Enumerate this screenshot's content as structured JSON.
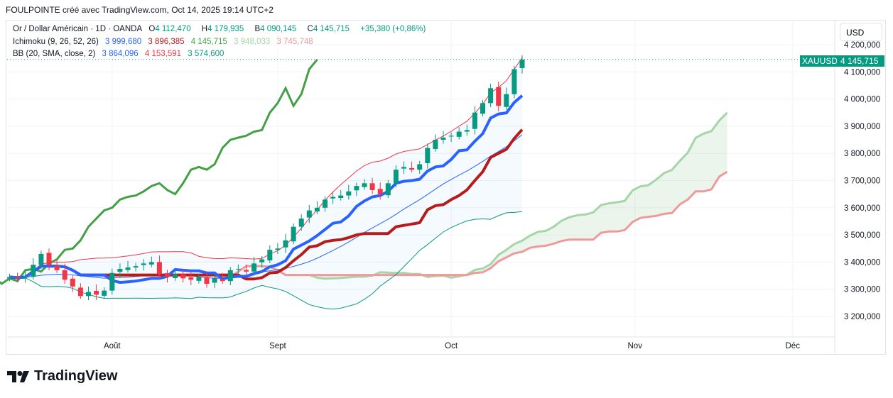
{
  "header": {
    "title": "FOULPOINTE créé avec TradingView.com, Oct 14, 2025 19:14 UTC+2"
  },
  "legend": {
    "symbol": "Or / Dollar Américain · 1D · OANDA",
    "o_label": "O",
    "o": "4 112,470",
    "h_label": "H",
    "h": "4 179,935",
    "l_label": "B",
    "l": "4 090,145",
    "c_label": "C",
    "c": "4 145,715",
    "change": "+35,380 (+0,86%)",
    "ichimoku": "Ichimoku (9, 26, 52, 26)",
    "ichi_vals": [
      "3 999,680",
      "3 896,385",
      "4 145,715",
      "3 948,033",
      "3 745,748"
    ],
    "bb": "BB (20, SMA, close, 2)",
    "bb_vals": [
      "3 864,096",
      "4 153,591",
      "3 574,600"
    ]
  },
  "currency": "USD",
  "price_tag": {
    "symbol": "XAUUSD",
    "price": "4 145,715"
  },
  "brand": "TradingView",
  "colors": {
    "up": "#089981",
    "down": "#f23645",
    "tenkan": "#2962ff",
    "kijun": "#b71c1c",
    "lagging": "#43a047",
    "spanA": "#a5d6a7",
    "spanB": "#ef9a9a",
    "bb": "#f23645",
    "bbl": "#089981"
  },
  "chart_data": {
    "type": "candlestick",
    "ylim": [
      3150,
      4250
    ],
    "y_ticks": [
      "4 200,000",
      "4 100,000",
      "4 000,000",
      "3 900,000",
      "3 800,000",
      "3 700,000",
      "3 600,000",
      "3 500,000",
      "3 400,000",
      "3 300,000",
      "3 200,000"
    ],
    "y_tick_values": [
      4200,
      4100,
      4000,
      3900,
      3800,
      3700,
      3600,
      3500,
      3400,
      3300,
      3200
    ],
    "x_ticks": [
      "Août",
      "Sept",
      "Oct",
      "Nov",
      "Déc"
    ],
    "x_tick_bar_index": [
      13,
      34,
      56,
      79.3,
      99.3
    ],
    "closes": [
      3345,
      3340,
      3350,
      3390,
      3430,
      3390,
      3370,
      3335,
      3310,
      3275,
      3290,
      3280,
      3295,
      3360,
      3375,
      3380,
      3385,
      3395,
      3400,
      3355,
      3345,
      3355,
      3340,
      3335,
      3345,
      3320,
      3340,
      3330,
      3370,
      3375,
      3365,
      3395,
      3410,
      3445,
      3450,
      3480,
      3530,
      3560,
      3590,
      3600,
      3630,
      3640,
      3645,
      3660,
      3680,
      3690,
      3665,
      3650,
      3690,
      3740,
      3750,
      3740,
      3760,
      3820,
      3850,
      3858,
      3865,
      3880,
      3886,
      3950,
      3985,
      4040,
      3975,
      4018,
      4110,
      4145
    ]
  }
}
